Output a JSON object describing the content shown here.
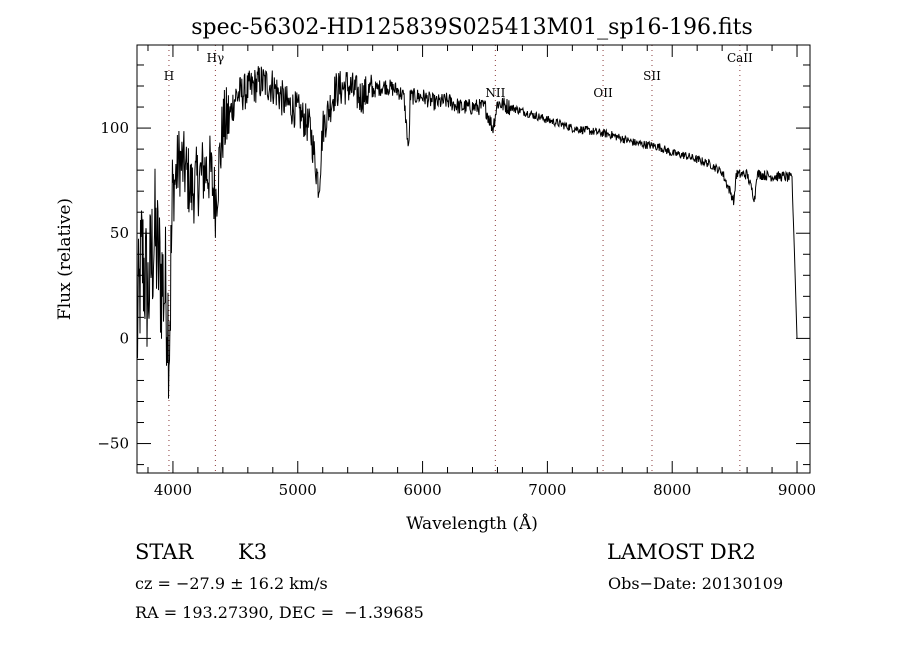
{
  "chart_data": {
    "type": "line",
    "title": "spec-56302-HD125839S025413M01_sp16-196.fits",
    "xlabel": "Wavelength (Å)",
    "ylabel": "Flux (relative)",
    "xlim": [
      3712,
      9104
    ],
    "ylim": [
      -64,
      139.5
    ],
    "x_ticks": [
      4000,
      5000,
      6000,
      7000,
      8000,
      9000
    ],
    "y_ticks": [
      -50,
      0,
      50,
      100
    ],
    "grid": false,
    "line_color": "#000000",
    "marker_line_color": "#8b3a3a",
    "line_markers": [
      {
        "label": "H",
        "x": 3968
      },
      {
        "label": "Hγ",
        "x": 4340
      },
      {
        "label": "NII",
        "x": 6583
      },
      {
        "label": "OII",
        "x": 7446
      },
      {
        "label": "SII",
        "x": 7838
      },
      {
        "label": "CaII",
        "x": 8542
      }
    ],
    "series": [
      {
        "name": "spectrum",
        "x": [
          3712,
          3750,
          3800,
          3850,
          3900,
          3950,
          3970,
          4000,
          4050,
          4100,
          4150,
          4200,
          4250,
          4300,
          4340,
          4400,
          4450,
          4500,
          4600,
          4700,
          4800,
          4900,
          5000,
          5100,
          5170,
          5200,
          5300,
          5400,
          5500,
          5600,
          5700,
          5800,
          5850,
          5890,
          5900,
          6000,
          6100,
          6200,
          6300,
          6400,
          6500,
          6563,
          6600,
          6700,
          6800,
          6900,
          7000,
          7100,
          7200,
          7300,
          7400,
          7500,
          7600,
          7700,
          7800,
          7900,
          8000,
          8100,
          8200,
          8300,
          8400,
          8498,
          8510,
          8542,
          8600,
          8662,
          8675,
          8700,
          8800,
          8900,
          8960,
          8980,
          9000
        ],
        "y": [
          0,
          40,
          20,
          50,
          30,
          20,
          0,
          70,
          85,
          80,
          70,
          75,
          80,
          80,
          65,
          100,
          105,
          115,
          118,
          122,
          120,
          112,
          108,
          100,
          72,
          100,
          118,
          120,
          115,
          118,
          120,
          118,
          115,
          88,
          115,
          115,
          112,
          113,
          110,
          110,
          110,
          100,
          112,
          110,
          108,
          106,
          104,
          102,
          100,
          99,
          98,
          97,
          95,
          93,
          92,
          91,
          88,
          87,
          85,
          83,
          79,
          65,
          78,
          78,
          78,
          66,
          78,
          78,
          77,
          77,
          76,
          40,
          0
        ]
      }
    ]
  },
  "info": {
    "class_label": "STAR",
    "subclass": "K3",
    "survey": "LAMOST DR2",
    "cz": "cz = −27.9 ± 16.2 km/s",
    "obs_date": "Obs−Date: 20130109",
    "coords": "RA = 193.27390, DEC =  −1.39685"
  }
}
